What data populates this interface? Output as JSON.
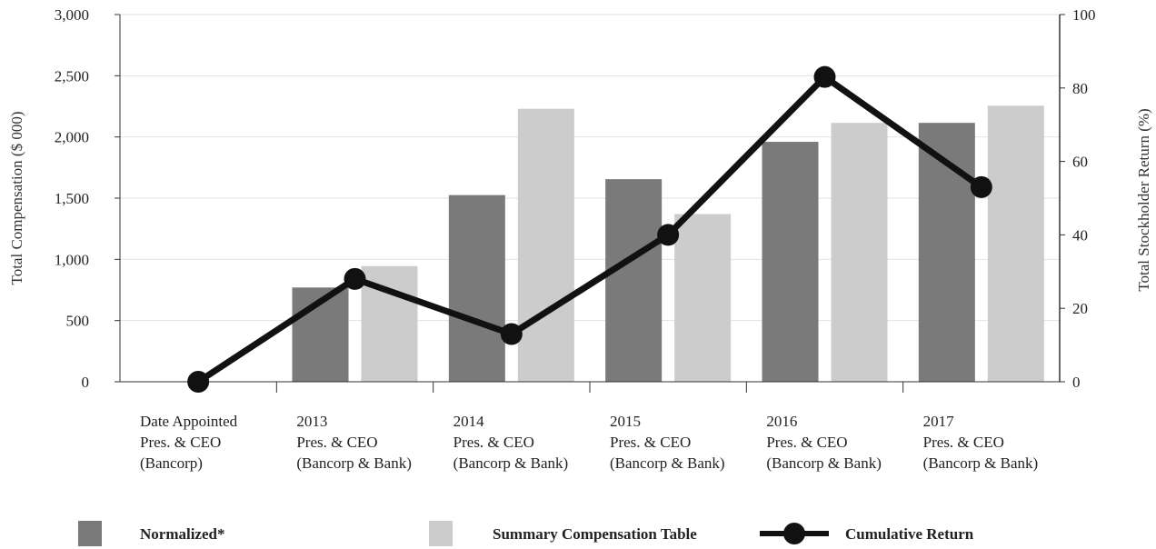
{
  "chart_data": {
    "type": "bar",
    "categories": [
      [
        "Date Appointed",
        "Pres. & CEO",
        "(Bancorp)"
      ],
      [
        "2013",
        "Pres. & CEO",
        "(Bancorp & Bank)"
      ],
      [
        "2014",
        "Pres. & CEO",
        "(Bancorp & Bank)"
      ],
      [
        "2015",
        "Pres. & CEO",
        "(Bancorp & Bank)"
      ],
      [
        "2016",
        "Pres. & CEO",
        "(Bancorp & Bank)"
      ],
      [
        "2017",
        "Pres. & CEO",
        "(Bancorp & Bank)"
      ]
    ],
    "series": [
      {
        "name": "Normalized*",
        "type": "bar",
        "axis": "left",
        "color": "#7a7a7a",
        "values": [
          null,
          770,
          1525,
          1655,
          1960,
          2115
        ]
      },
      {
        "name": "Summary Compensation Table",
        "type": "bar",
        "axis": "left",
        "color": "#cccccc",
        "values": [
          null,
          945,
          2230,
          1370,
          2115,
          2255
        ]
      },
      {
        "name": "Cumulative Return",
        "type": "line",
        "axis": "right",
        "color": "#111111",
        "values": [
          0,
          28,
          13,
          40,
          83,
          53
        ]
      }
    ],
    "ylabel": "Total Compensation ($ 000)",
    "y2label": "Total Stockholder Return (%)",
    "ylim": [
      0,
      3000
    ],
    "y2lim": [
      0,
      100
    ],
    "yticks": [
      "0",
      "500",
      "1,000",
      "1,500",
      "2,000",
      "2,500",
      "3,000"
    ],
    "y2ticks": [
      "0",
      "20",
      "40",
      "60",
      "80",
      "100"
    ],
    "grid": true,
    "legend": "bottom"
  }
}
